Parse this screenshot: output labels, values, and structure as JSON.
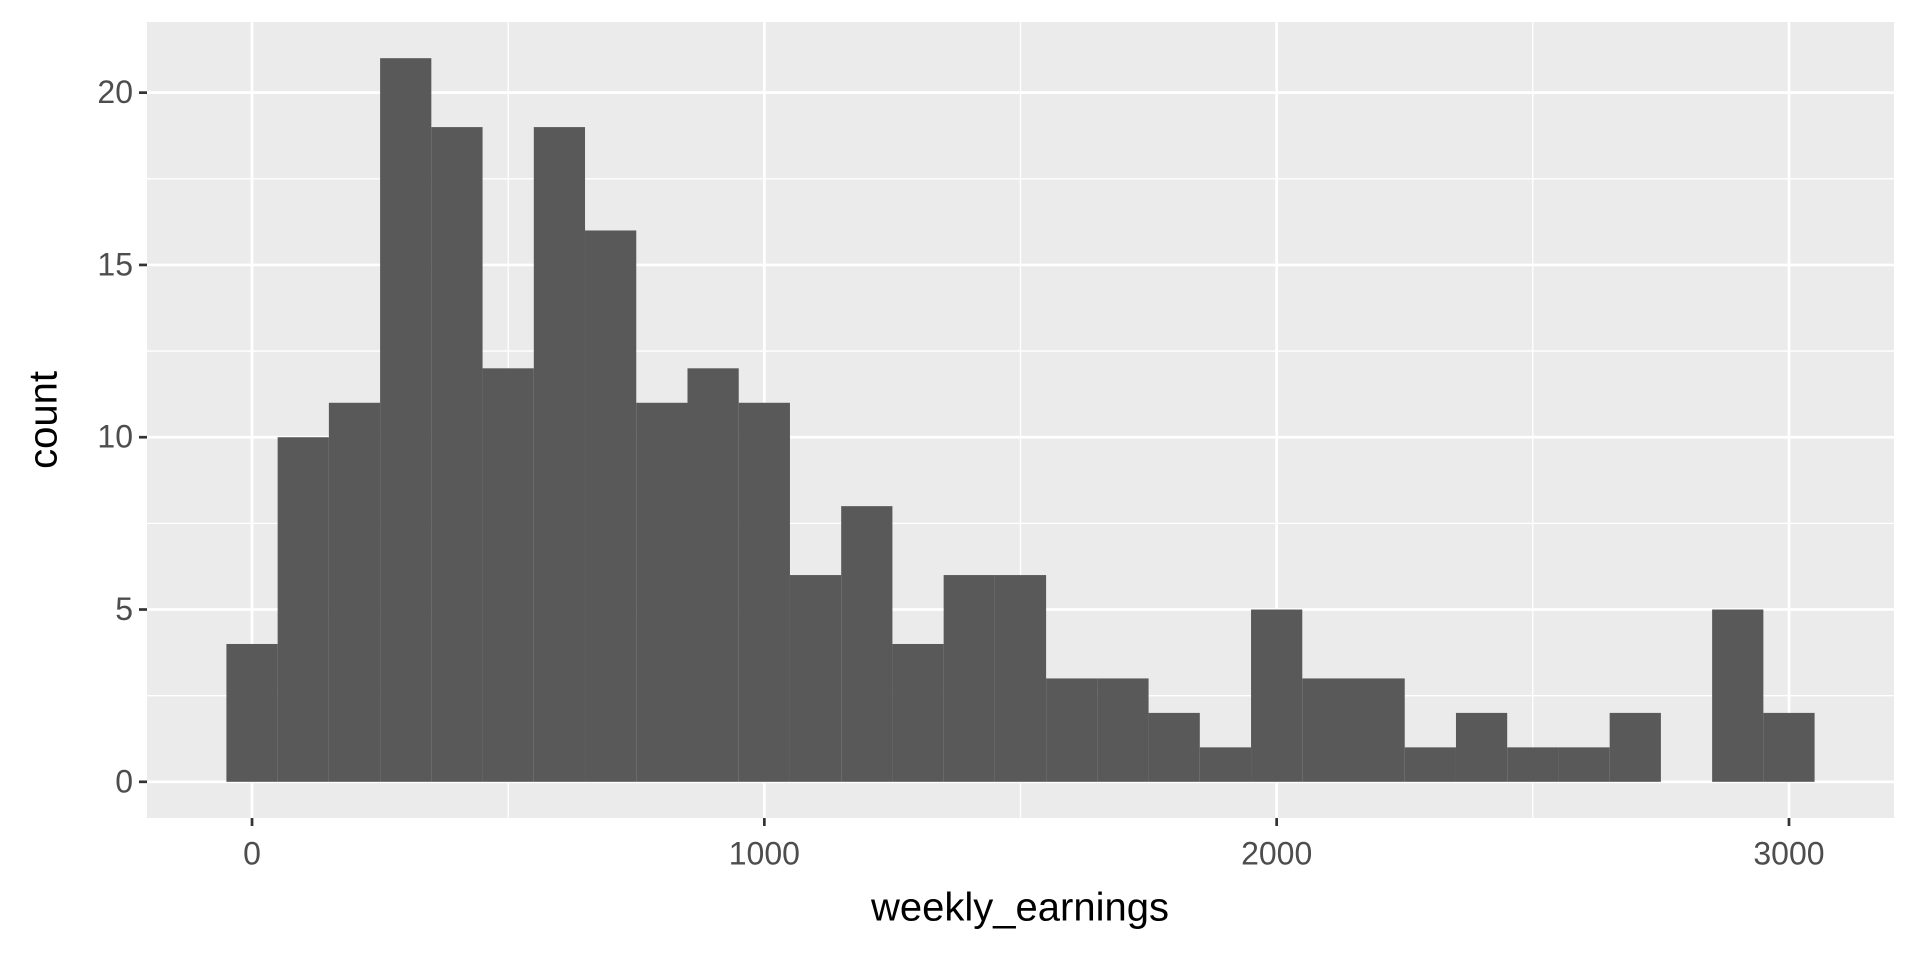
{
  "chart_data": {
    "type": "histogram",
    "x_label": "weekly_earnings",
    "y_label": "count",
    "bins": [
      -50,
      50,
      150,
      250,
      350,
      450,
      550,
      650,
      750,
      850,
      950,
      1050,
      1150,
      1250,
      1350,
      1450,
      1550,
      1650,
      1750,
      1850,
      1950,
      2050,
      2150,
      2250,
      2350,
      2450,
      2550,
      2650,
      2750,
      2850,
      2950,
      3050
    ],
    "values": [
      4,
      10,
      11,
      21,
      19,
      12,
      19,
      16,
      11,
      12,
      11,
      6,
      8,
      4,
      6,
      6,
      3,
      3,
      2,
      1,
      5,
      3,
      3,
      1,
      2,
      1,
      1,
      2,
      0,
      5,
      2
    ],
    "color": "#595959",
    "xlim": [
      -205,
      3205
    ],
    "xticks": [
      0,
      1000,
      2000,
      3000
    ],
    "ylim": [
      -1.05,
      22.05
    ],
    "yticks": [
      0,
      5,
      10,
      15,
      20
    ],
    "grid": true
  }
}
